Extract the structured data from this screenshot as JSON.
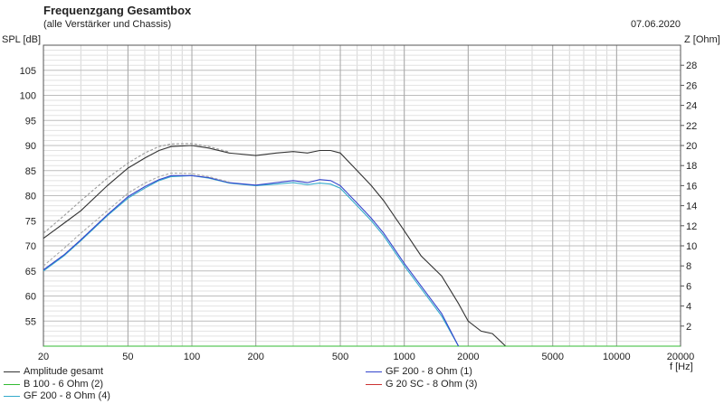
{
  "header": {
    "title": "Frequenzgang Gesamtbox",
    "subtitle": "(alle Verstärker und Chassis)",
    "date": "07.06.2020"
  },
  "chart_data": {
    "type": "line",
    "title": "Frequenzgang Gesamtbox",
    "subtitle": "(alle Verstärker und Chassis)",
    "xlabel": "f [Hz]",
    "ylabel": "SPL [dB]",
    "y2label": "Z [Ohm]",
    "x_scale": "log",
    "xlim": [
      20,
      20000
    ],
    "ylim": [
      50,
      110
    ],
    "y2lim": [
      0,
      30
    ],
    "grid": true,
    "x_ticks": [
      "20",
      "50",
      "100",
      "200",
      "500",
      "1000",
      "2000",
      "5000",
      "10000",
      "20000"
    ],
    "y_ticks": [
      "55",
      "60",
      "65",
      "70",
      "75",
      "80",
      "85",
      "90",
      "95",
      "100",
      "105"
    ],
    "y2_ticks": [
      "2",
      "4",
      "6",
      "8",
      "10",
      "12",
      "14",
      "16",
      "18",
      "20",
      "22",
      "24",
      "26",
      "28"
    ],
    "legend_position": "bottom",
    "series": [
      {
        "name": "Amplitude gesamt",
        "color": "#333333",
        "style": "solid",
        "x": [
          20,
          25,
          30,
          40,
          50,
          60,
          70,
          80,
          100,
          120,
          150,
          200,
          250,
          300,
          350,
          400,
          450,
          500,
          600,
          700,
          800,
          1000,
          1200,
          1500,
          1800,
          2000,
          2300,
          2600,
          3000
        ],
        "y": [
          71.5,
          74.5,
          77,
          82,
          85.5,
          87.5,
          89,
          89.8,
          90,
          89.5,
          88.5,
          88,
          88.5,
          88.8,
          88.5,
          89,
          89,
          88.5,
          85,
          82,
          79,
          73,
          68,
          64,
          58.5,
          55,
          53,
          52.5,
          50
        ]
      },
      {
        "name": "B 100 - 6 Ohm (2)",
        "color": "#33bb33",
        "style": "solid",
        "x": [
          20,
          20000
        ],
        "y": [
          50,
          50
        ]
      },
      {
        "name": "GF 200 - 8 Ohm (4)",
        "color": "#33aacc",
        "style": "solid",
        "x": [
          20,
          25,
          30,
          40,
          50,
          60,
          70,
          80,
          100,
          120,
          150,
          200,
          250,
          300,
          350,
          400,
          450,
          500,
          600,
          700,
          800,
          1000,
          1200,
          1500,
          1800
        ],
        "y": [
          65,
          68,
          71,
          76,
          79.5,
          81.5,
          83,
          83.8,
          84,
          83.5,
          82.5,
          82,
          82.3,
          82.6,
          82.2,
          82.5,
          82.3,
          81.5,
          78,
          75,
          72,
          66,
          61.5,
          56,
          50
        ]
      },
      {
        "name": "GF 200 - 8 Ohm (1)",
        "color": "#3344cc",
        "style": "solid",
        "x": [
          20,
          25,
          30,
          40,
          50,
          60,
          70,
          80,
          100,
          120,
          150,
          200,
          250,
          300,
          350,
          400,
          450,
          500,
          600,
          700,
          800,
          1000,
          1200,
          1500,
          1800
        ],
        "y": [
          65.2,
          68.2,
          71.2,
          76.2,
          79.8,
          81.8,
          83.2,
          84,
          84,
          83.6,
          82.6,
          82.1,
          82.6,
          83,
          82.6,
          83.2,
          83,
          82,
          78.5,
          75.5,
          72.5,
          66.5,
          62,
          56.5,
          50
        ]
      },
      {
        "name": "G 20 SC - 8 Ohm (3)",
        "color": "#cc3333",
        "style": "solid",
        "x": [],
        "y": []
      },
      {
        "name": "",
        "color": "#999999",
        "style": "dashed",
        "x": [
          20,
          25,
          30,
          40,
          50,
          60,
          70,
          80,
          100,
          120,
          150
        ],
        "y": [
          72.5,
          76,
          79,
          83.5,
          86.5,
          88.5,
          89.8,
          90.3,
          90.4,
          89.8,
          88.7
        ]
      },
      {
        "name": "",
        "color": "#aaaaaa",
        "style": "dashed",
        "x": [
          20,
          25,
          30,
          40,
          50,
          60,
          70,
          80,
          100,
          120,
          150
        ],
        "y": [
          66,
          69.5,
          72.5,
          77,
          80.5,
          82.5,
          83.8,
          84.5,
          84.4,
          83.8,
          82.7
        ]
      }
    ]
  },
  "legend": [
    {
      "label": "Amplitude gesamt",
      "color": "#333333"
    },
    {
      "label": "B 100 - 6 Ohm (2)",
      "color": "#33bb33"
    },
    {
      "label": "GF 200 - 8 Ohm (4)",
      "color": "#33aacc"
    },
    {
      "label": "GF 200 - 8 Ohm (1)",
      "color": "#3344cc"
    },
    {
      "label": "G 20 SC - 8 Ohm (3)",
      "color": "#cc3333"
    }
  ]
}
